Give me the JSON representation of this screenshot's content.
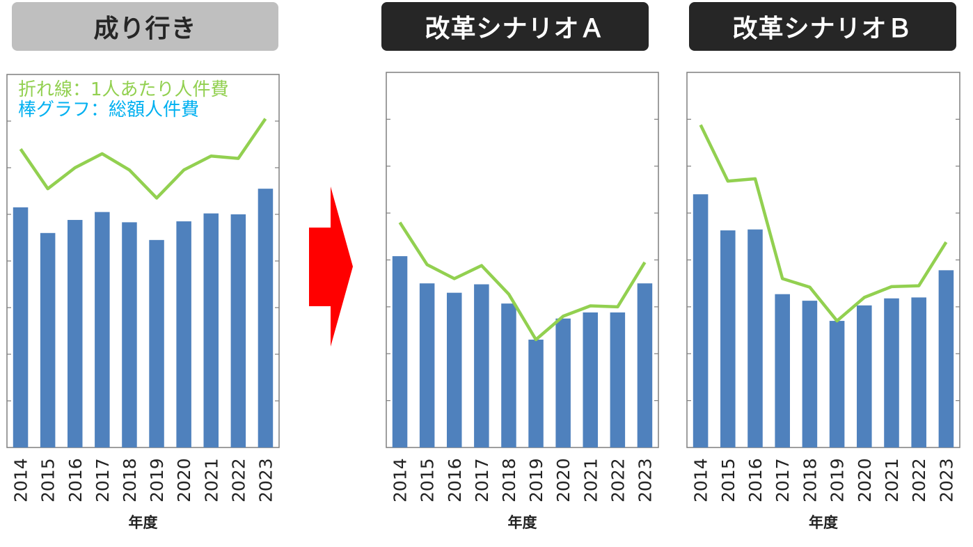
{
  "headers": [
    "成り行き",
    "改革シナリオＡ",
    "改革シナリオＢ"
  ],
  "legend": {
    "line": "折れ線：1人あたり人件費",
    "bar": "棒グラフ：総額人件費"
  },
  "colors": {
    "bar": "#4f81bd",
    "line": "#92d050",
    "arrow": "#ff0000",
    "legend_line": "#92d050",
    "legend_bar": "#00b0f0",
    "header_gray": "#bfbfbf",
    "header_dark": "#262626"
  },
  "chart_data": [
    {
      "type": "bar",
      "title": "成り行き",
      "xlabel": "年度",
      "categories": [
        "2014",
        "2015",
        "2016",
        "2017",
        "2018",
        "2019",
        "2020",
        "2021",
        "2022",
        "2023"
      ],
      "ylim": [
        0,
        8
      ],
      "series": [
        {
          "kind": "bar",
          "values": [
            5.15,
            4.6,
            4.88,
            5.05,
            4.83,
            4.45,
            4.85,
            5.02,
            5.0,
            5.55
          ]
        },
        {
          "kind": "line",
          "values": [
            6.4,
            5.55,
            6.0,
            6.3,
            5.95,
            5.35,
            5.95,
            6.25,
            6.2,
            7.05
          ]
        }
      ]
    },
    {
      "type": "bar",
      "title": "改革シナリオＡ",
      "xlabel": "年度",
      "categories": [
        "2014",
        "2015",
        "2016",
        "2017",
        "2018",
        "2019",
        "2020",
        "2021",
        "2022",
        "2023"
      ],
      "ylim": [
        0,
        8
      ],
      "series": [
        {
          "kind": "bar",
          "values": [
            4.08,
            3.5,
            3.3,
            3.48,
            3.07,
            2.3,
            2.75,
            2.88,
            2.88,
            3.5
          ]
        },
        {
          "kind": "line",
          "values": [
            4.8,
            3.9,
            3.6,
            3.88,
            3.27,
            2.3,
            2.8,
            3.02,
            3.0,
            3.95
          ]
        }
      ]
    },
    {
      "type": "bar",
      "title": "改革シナリオＢ",
      "xlabel": "年度",
      "categories": [
        "2014",
        "2015",
        "2016",
        "2017",
        "2018",
        "2019",
        "2020",
        "2021",
        "2022",
        "2023"
      ],
      "ylim": [
        0,
        8
      ],
      "series": [
        {
          "kind": "bar",
          "values": [
            5.4,
            4.63,
            4.65,
            3.27,
            3.13,
            2.7,
            3.03,
            3.18,
            3.2,
            3.78
          ]
        },
        {
          "kind": "line",
          "values": [
            6.88,
            5.68,
            5.73,
            3.6,
            3.42,
            2.7,
            3.2,
            3.43,
            3.45,
            4.38
          ]
        }
      ]
    }
  ]
}
